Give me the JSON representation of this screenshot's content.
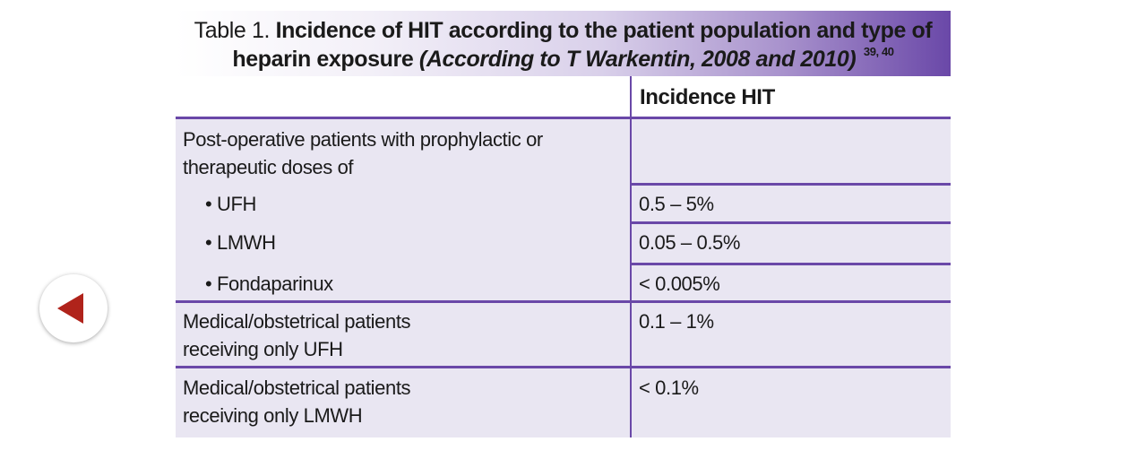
{
  "title": {
    "prefix": "Table 1.",
    "bold_line1": "Incidence of HIT according to the patient population and type of",
    "bold_line2": "heparin exposure",
    "italic": "(According to T Warkentin, 2008 and 2010)",
    "refs": "39, 40"
  },
  "table": {
    "header": {
      "col1": "",
      "col2": "Incidence HIT"
    },
    "postop": {
      "label_line1": "Post-operative patients with prophylactic or",
      "label_line2": "therapeutic doses of",
      "items": [
        {
          "label": "• UFH",
          "value": "0.5 – 5%"
        },
        {
          "label": "• LMWH",
          "value": "0.05 – 0.5%"
        },
        {
          "label": "• Fondaparinux",
          "value": "< 0.005%"
        }
      ]
    },
    "rows": [
      {
        "line1": "Medical/obstetrical patients",
        "line2": "receiving only UFH",
        "value": "0.1 – 1%"
      },
      {
        "line1": "Medical/obstetrical patients",
        "line2": "receiving only LMWH",
        "value": "< 0.1%"
      }
    ]
  },
  "nav": {
    "back_icon": "triangle-left-icon",
    "accent": "#b0231b"
  },
  "colors": {
    "border": "#6a48a8",
    "cell_bg": "#e9e6f2"
  }
}
